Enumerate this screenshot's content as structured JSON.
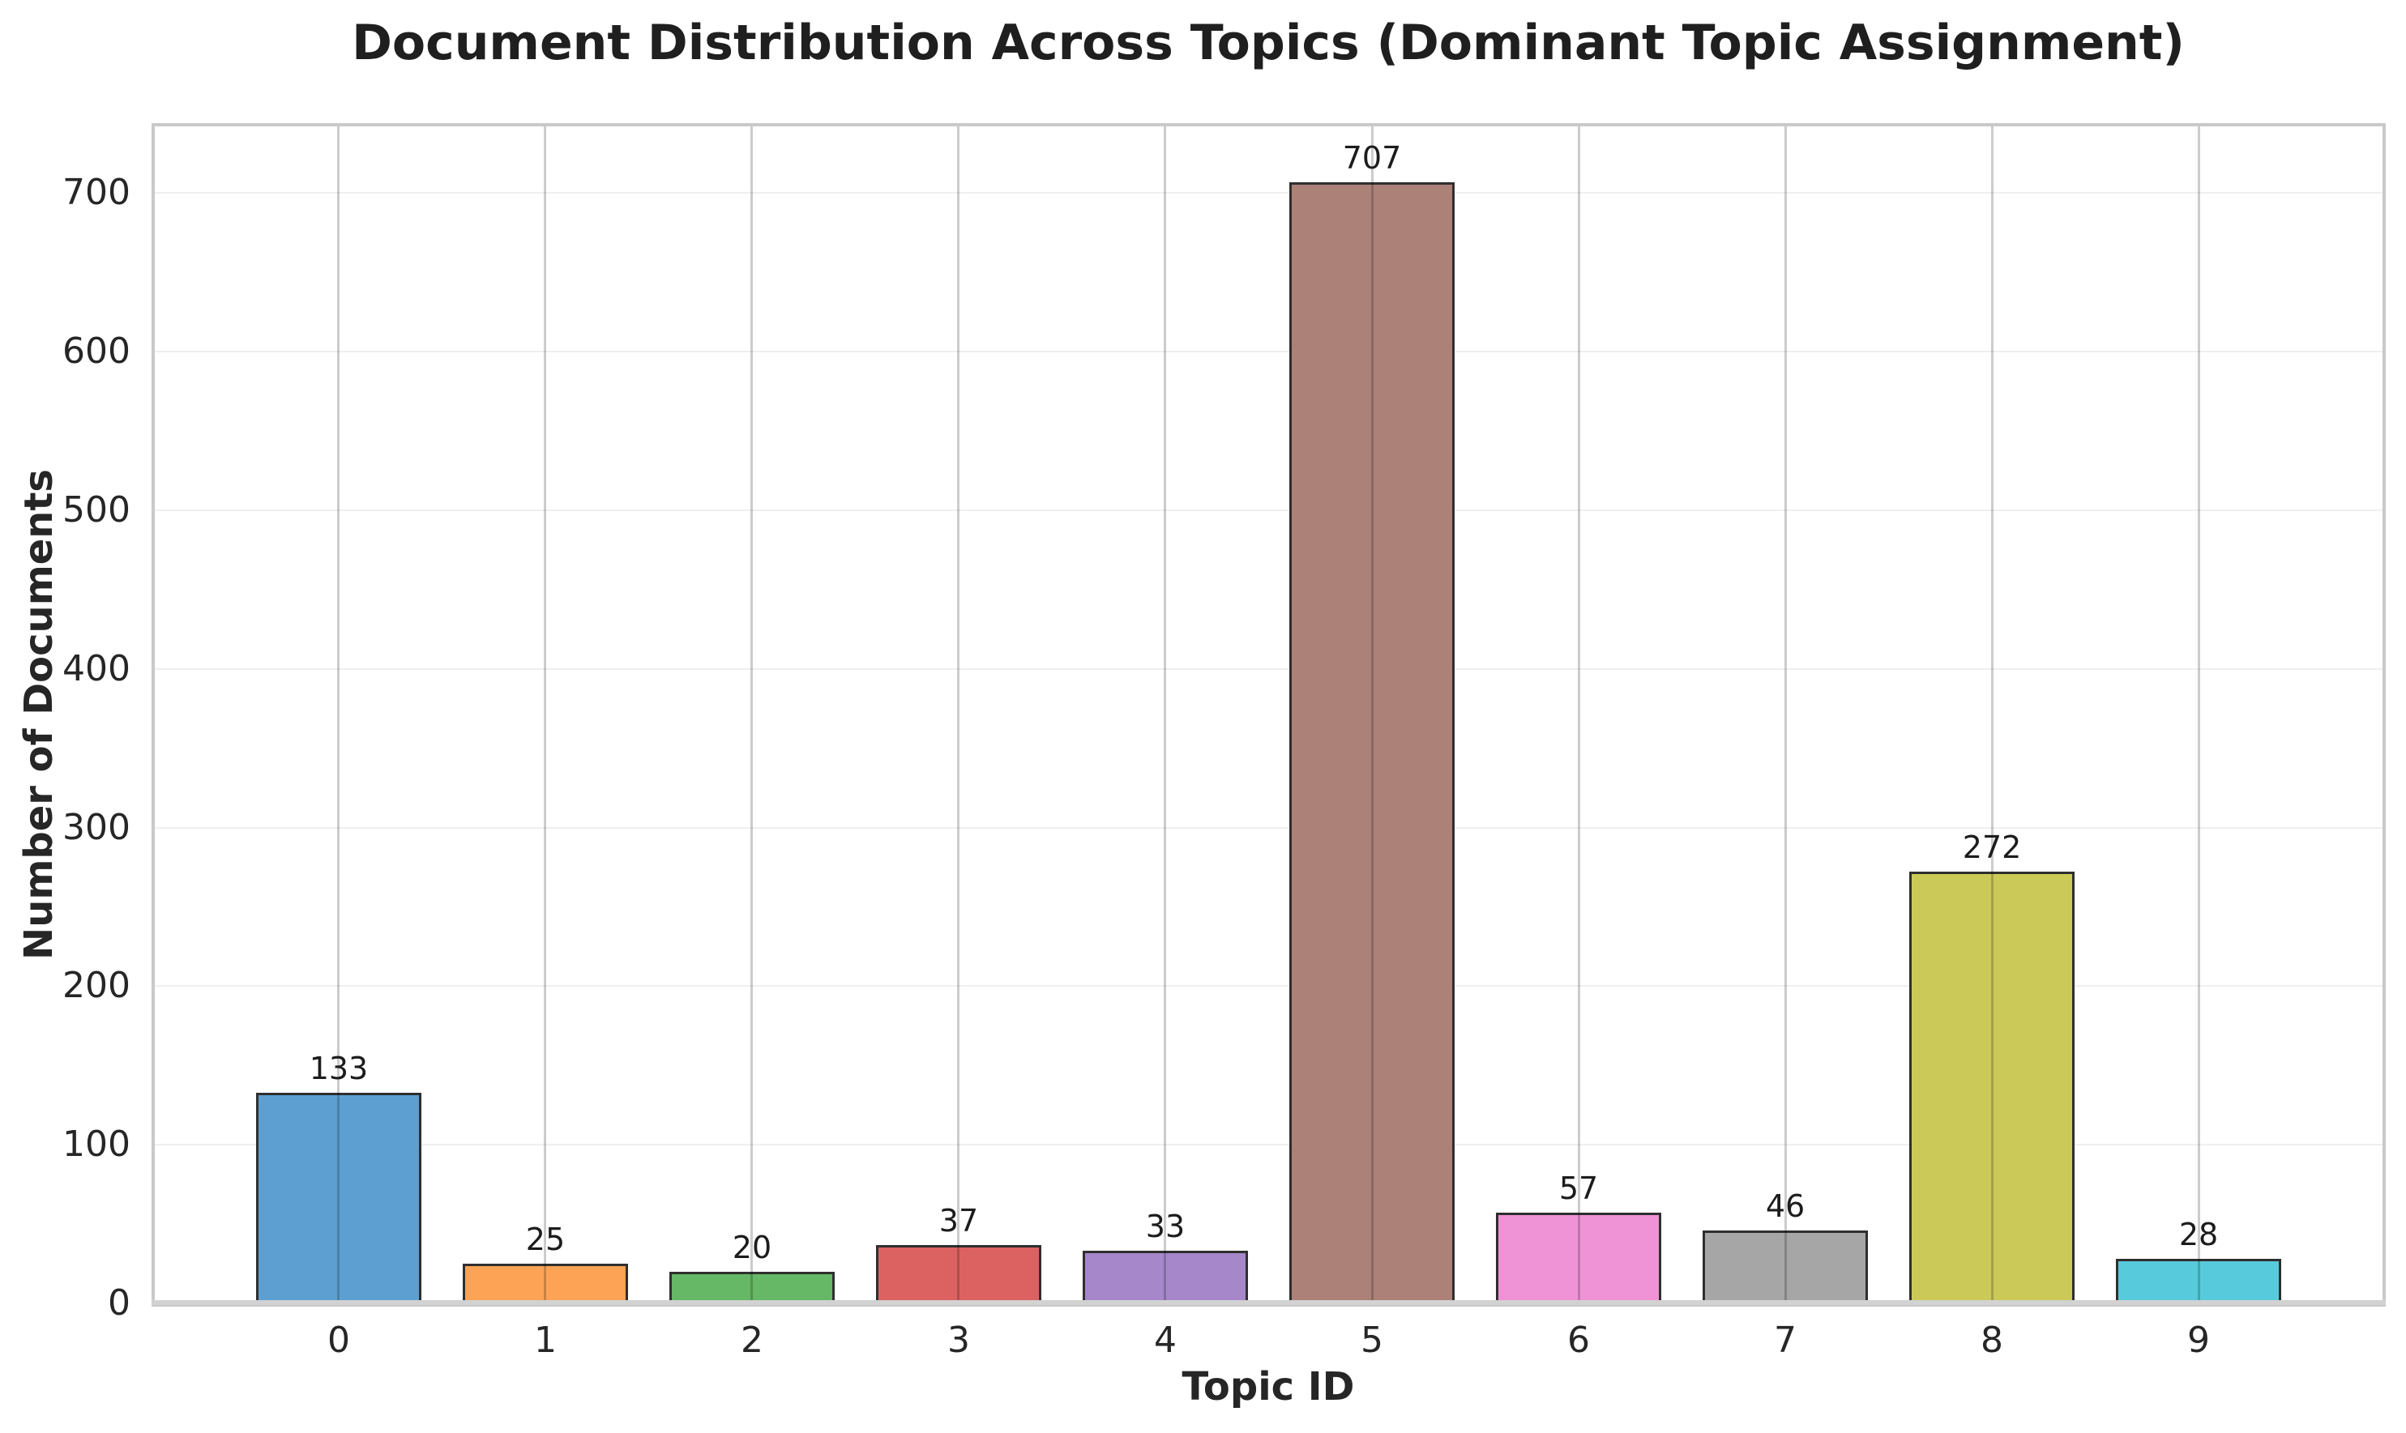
{
  "chart_data": {
    "type": "bar",
    "title": "Document Distribution Across Topics (Dominant Topic Assignment)",
    "xlabel": "Topic ID",
    "ylabel": "Number of Documents",
    "categories": [
      "0",
      "1",
      "2",
      "3",
      "4",
      "5",
      "6",
      "7",
      "8",
      "9"
    ],
    "values": [
      133,
      25,
      20,
      37,
      33,
      707,
      57,
      46,
      272,
      28
    ],
    "bar_labels": [
      "133",
      "25",
      "20",
      "37",
      "33",
      "707",
      "57",
      "46",
      "272",
      "28"
    ],
    "yticks": [
      0,
      100,
      200,
      300,
      400,
      500,
      600,
      700
    ],
    "ylim": [
      0,
      742
    ],
    "bar_width": 0.8,
    "grid": "on",
    "legend": "none",
    "colors": {
      "bars": [
        "#5E9FD1",
        "#FCA355",
        "#66B866",
        "#DC6262",
        "#A687CA",
        "#AC8178",
        "#EF93D6",
        "#A6A6A6",
        "#CBCA58",
        "#57CBDB"
      ],
      "bar_edge": "#2F2F2F",
      "grid_horizontal": "#EFEFEF",
      "grid_vertical": "#C9C9C9",
      "spine": "#C9C9C9",
      "text": "#262626",
      "background": "#FFFFFF"
    }
  }
}
